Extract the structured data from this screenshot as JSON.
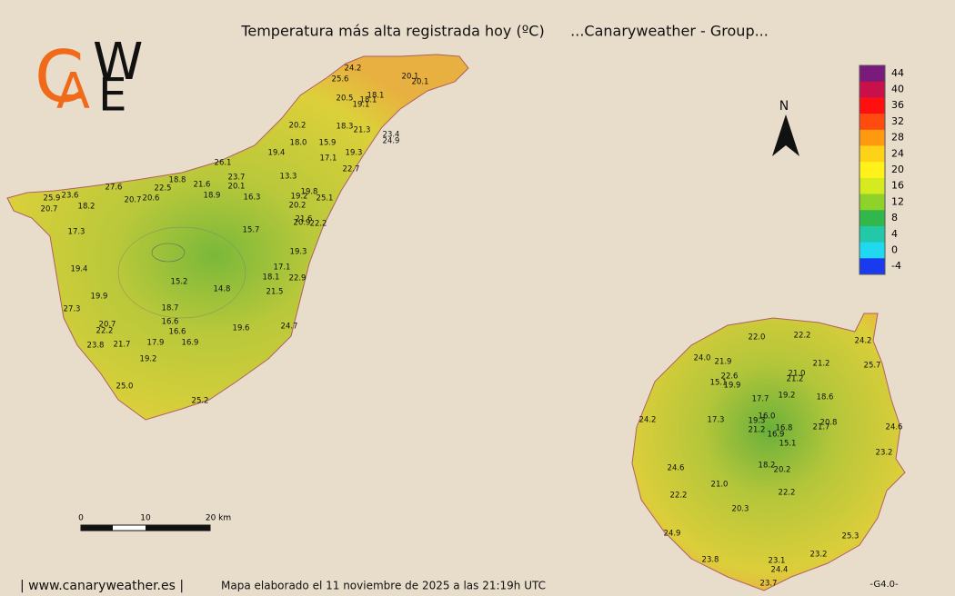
{
  "header": {
    "title": "Temperatura más alta registrada hoy (ºC)",
    "group": "...Canaryweather - Group..."
  },
  "logo": [
    "C",
    "A",
    "W",
    "E"
  ],
  "north": "N",
  "legend": {
    "ticks": [
      44,
      40,
      36,
      32,
      28,
      24,
      20,
      16,
      12,
      8,
      4,
      0,
      -4
    ],
    "colors": [
      "#7a1a7a",
      "#c8104a",
      "#ff1010",
      "#ff4a10",
      "#ff9a10",
      "#ffd21a",
      "#fff21a",
      "#d6ea20",
      "#8fd22a",
      "#32b84a",
      "#22c8a8",
      "#20d8f0",
      "#1a3af0"
    ]
  },
  "scale_bar": {
    "ticks": [
      0,
      10
    ],
    "end_label": "20 km"
  },
  "tenerife_labels": [
    "24.2",
    "25.6",
    "20.1",
    "20.1",
    "20.5",
    "18.1",
    "18.1",
    "19.1",
    "20.2",
    "18.3",
    "21.3",
    "23.4",
    "24.9",
    "18.0",
    "15.9",
    "19.4",
    "19.3",
    "17.1",
    "26.1",
    "22.7",
    "23.7",
    "18.8",
    "13.3",
    "21.6",
    "20.1",
    "22.5",
    "27.6",
    "19.8",
    "18.9",
    "19.2",
    "20.7",
    "20.6",
    "16.3",
    "25.1",
    "25.9",
    "23.6",
    "18.2",
    "20.7",
    "20.2",
    "21.6",
    "20.9",
    "22.2",
    "17.3",
    "15.7",
    "19.3",
    "19.4",
    "17.1",
    "18.1",
    "22.9",
    "15.2",
    "14.8",
    "21.5",
    "19.9",
    "27.3",
    "18.7",
    "16.6",
    "20.7",
    "19.6",
    "24.7",
    "22.2",
    "16.6",
    "17.9",
    "16.9",
    "23.8",
    "21.7",
    "19.2",
    "25.0",
    "25.2"
  ],
  "gran_canaria_labels": [
    "22.0",
    "22.2",
    "24.2",
    "24.0",
    "21.9",
    "21.2",
    "25.7",
    "21.0",
    "22.6",
    "21.2",
    "15.1",
    "19.9",
    "17.7",
    "19.2",
    "18.6",
    "16.0",
    "24.2",
    "17.3",
    "19.3",
    "20.8",
    "16.8",
    "21.2",
    "21.7",
    "24.6",
    "16.9",
    "15.1",
    "23.2",
    "18.2",
    "20.2",
    "24.6",
    "21.0",
    "22.2",
    "22.2",
    "20.3",
    "25.3",
    "24.9",
    "23.2",
    "23.8",
    "23.1",
    "24.4",
    "23.7"
  ],
  "footer": {
    "site": "| www.canaryweather.es |",
    "made": "Mapa elaborado el 11 noviembre de 2025 a las 21:19h UTC",
    "version": "-G4.0-"
  }
}
